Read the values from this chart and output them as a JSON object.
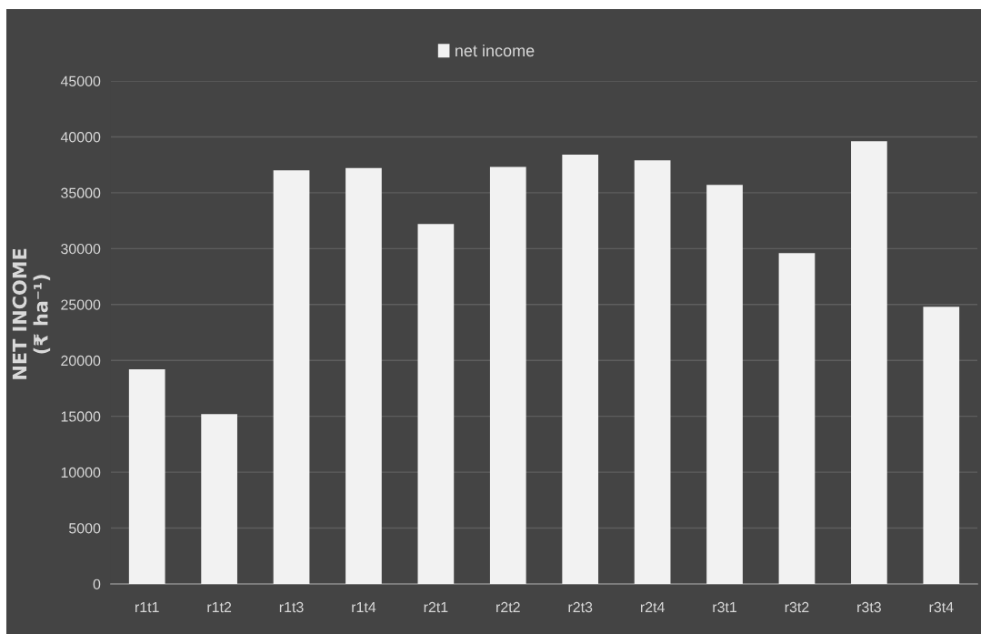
{
  "chart_data": {
    "type": "bar",
    "categories": [
      "r1t1",
      "r1t2",
      "r1t3",
      "r1t4",
      "r2t1",
      "r2t2",
      "r2t3",
      "r2t4",
      "r3t1",
      "r3t2",
      "r3t3",
      "r3t4"
    ],
    "series": [
      {
        "name": "net income",
        "color": "#f2f2f2",
        "values": [
          19200,
          15200,
          37000,
          37200,
          32200,
          37300,
          38400,
          37900,
          35700,
          29600,
          39600,
          24800
        ]
      }
    ],
    "ylabel": "NET INCOME\n(₹ ha⁻¹)",
    "ylim": [
      0,
      45000
    ],
    "yticks": [
      0,
      5000,
      10000,
      15000,
      20000,
      25000,
      30000,
      35000,
      40000,
      45000
    ],
    "grid": "y",
    "legend": "top"
  }
}
